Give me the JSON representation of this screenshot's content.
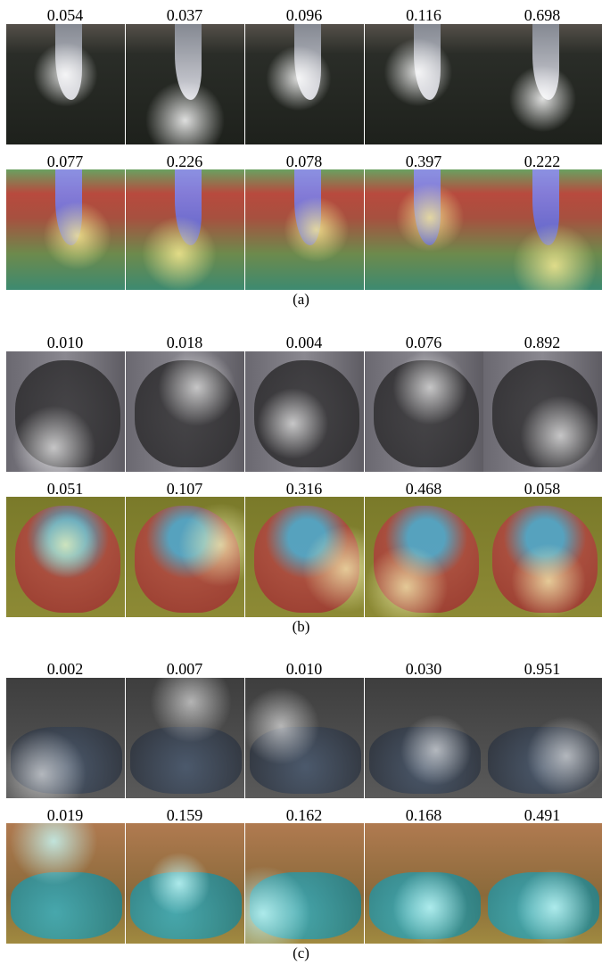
{
  "panels": [
    {
      "caption": "(a)",
      "rows": [
        [
          "0.054",
          "0.037",
          "0.096",
          "0.116",
          "0.698"
        ],
        [
          "0.077",
          "0.226",
          "0.078",
          "0.397",
          "0.222"
        ]
      ]
    },
    {
      "caption": "(b)",
      "rows": [
        [
          "0.010",
          "0.018",
          "0.004",
          "0.076",
          "0.892"
        ],
        [
          "0.051",
          "0.107",
          "0.316",
          "0.468",
          "0.058"
        ]
      ]
    },
    {
      "caption": "(c)",
      "rows": [
        [
          "0.002",
          "0.007",
          "0.010",
          "0.030",
          "0.951"
        ],
        [
          "0.019",
          "0.159",
          "0.162",
          "0.168",
          "0.491"
        ]
      ]
    }
  ]
}
